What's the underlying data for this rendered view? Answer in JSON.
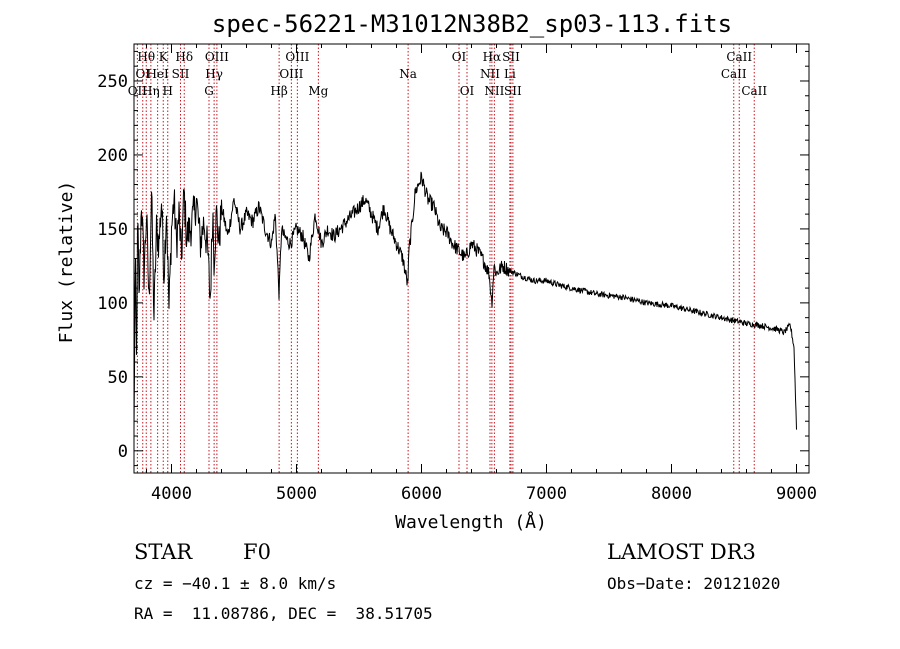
{
  "chart_data": {
    "type": "line",
    "title": "spec-56221-M31012N38B2_sp03-113.fits",
    "xlabel": "Wavelength (Å)",
    "ylabel": "Flux (relative)",
    "xlim": [
      3700,
      9100
    ],
    "ylim": [
      -15,
      275
    ],
    "xticks": [
      4000,
      5000,
      6000,
      7000,
      8000,
      9000
    ],
    "yticks": [
      0,
      50,
      100,
      150,
      200,
      250
    ],
    "series": [
      {
        "name": "flux",
        "x": [
          3700,
          3710,
          3720,
          3730,
          3740,
          3760,
          3780,
          3800,
          3820,
          3840,
          3860,
          3880,
          3900,
          3920,
          3940,
          3960,
          3980,
          4000,
          4020,
          4040,
          4060,
          4080,
          4100,
          4120,
          4150,
          4180,
          4200,
          4230,
          4260,
          4290,
          4310,
          4330,
          4340,
          4360,
          4380,
          4400,
          4450,
          4500,
          4550,
          4600,
          4650,
          4700,
          4750,
          4800,
          4830,
          4861,
          4880,
          4900,
          4950,
          5000,
          5050,
          5100,
          5150,
          5200,
          5250,
          5300,
          5350,
          5400,
          5450,
          5500,
          5550,
          5600,
          5650,
          5700,
          5750,
          5800,
          5850,
          5890,
          5900,
          5920,
          5950,
          6000,
          6050,
          6100,
          6150,
          6200,
          6250,
          6300,
          6350,
          6400,
          6450,
          6500,
          6540,
          6563,
          6580,
          6600,
          6650,
          6700,
          6750,
          6800,
          6900,
          7000,
          7100,
          7200,
          7300,
          7400,
          7500,
          7600,
          7700,
          7800,
          7900,
          8000,
          8100,
          8200,
          8300,
          8400,
          8500,
          8600,
          8700,
          8800,
          8850,
          8900,
          8950,
          8980,
          9000
        ],
        "values": [
          10,
          130,
          60,
          160,
          100,
          170,
          120,
          160,
          100,
          175,
          90,
          150,
          140,
          170,
          120,
          165,
          95,
          150,
          170,
          140,
          160,
          130,
          175,
          145,
          150,
          160,
          170,
          140,
          155,
          135,
          100,
          165,
          130,
          160,
          140,
          165,
          145,
          170,
          150,
          160,
          155,
          165,
          150,
          140,
          160,
          105,
          150,
          145,
          140,
          150,
          145,
          130,
          160,
          140,
          150,
          145,
          150,
          155,
          160,
          165,
          170,
          160,
          150,
          165,
          150,
          140,
          130,
          112,
          135,
          150,
          175,
          185,
          170,
          165,
          150,
          148,
          140,
          135,
          130,
          140,
          135,
          128,
          120,
          100,
          125,
          120,
          125,
          122,
          120,
          118,
          115,
          115,
          112,
          110,
          108,
          106,
          105,
          104,
          102,
          100,
          99,
          98,
          96,
          94,
          92,
          90,
          88,
          86,
          85,
          83,
          82,
          80,
          85,
          70,
          15
        ]
      }
    ],
    "line_markers": [
      {
        "wavelength": 3727,
        "label": "OII",
        "row": 3
      },
      {
        "wavelength": 3770,
        "label": "OI",
        "row": 2
      },
      {
        "wavelength": 3798,
        "label": "Hθ",
        "row": 1
      },
      {
        "wavelength": 3835,
        "label": "Hη",
        "row": 3
      },
      {
        "wavelength": 3889,
        "label": "HeI",
        "row": 2
      },
      {
        "wavelength": 3934,
        "label": "K",
        "row": 1
      },
      {
        "wavelength": 3970,
        "label": "H",
        "row": 3
      },
      {
        "wavelength": 4072,
        "label": "SII",
        "row": 2
      },
      {
        "wavelength": 4102,
        "label": "Hδ",
        "row": 1
      },
      {
        "wavelength": 4300,
        "label": "G",
        "row": 3
      },
      {
        "wavelength": 4341,
        "label": "Hγ",
        "row": 2
      },
      {
        "wavelength": 4363,
        "label": "OIII",
        "row": 1
      },
      {
        "wavelength": 4861,
        "label": "Hβ",
        "row": 3
      },
      {
        "wavelength": 4959,
        "label": "OIII",
        "row": 2
      },
      {
        "wavelength": 5007,
        "label": "OIII",
        "row": 1
      },
      {
        "wavelength": 5175,
        "label": "Mg",
        "row": 3
      },
      {
        "wavelength": 5893,
        "label": "Na",
        "row": 2
      },
      {
        "wavelength": 6300,
        "label": "OI",
        "row": 1
      },
      {
        "wavelength": 6364,
        "label": "OI",
        "row": 3
      },
      {
        "wavelength": 6548,
        "label": "NII",
        "row": 2
      },
      {
        "wavelength": 6563,
        "label": "Hα",
        "row": 1
      },
      {
        "wavelength": 6583,
        "label": "NII",
        "row": 3
      },
      {
        "wavelength": 6707,
        "label": "Li",
        "row": 2
      },
      {
        "wavelength": 6716,
        "label": "SII",
        "row": 1
      },
      {
        "wavelength": 6731,
        "label": "SII",
        "row": 3
      },
      {
        "wavelength": 8498,
        "label": "CaII",
        "row": 2
      },
      {
        "wavelength": 8542,
        "label": "CaII",
        "row": 1
      },
      {
        "wavelength": 8662,
        "label": "CaII",
        "row": 3
      }
    ]
  },
  "info": {
    "class": "STAR",
    "subclass": "F0",
    "survey": "LAMOST DR3",
    "cz": "cz = −40.1 ± 8.0 km/s",
    "obs_date": "Obs−Date: 20121020",
    "coords": "RA =  11.08786, DEC =  38.51705"
  },
  "colors": {
    "spectrum": "#000000",
    "marker_line": "#c8141e",
    "axis": "#000000"
  }
}
